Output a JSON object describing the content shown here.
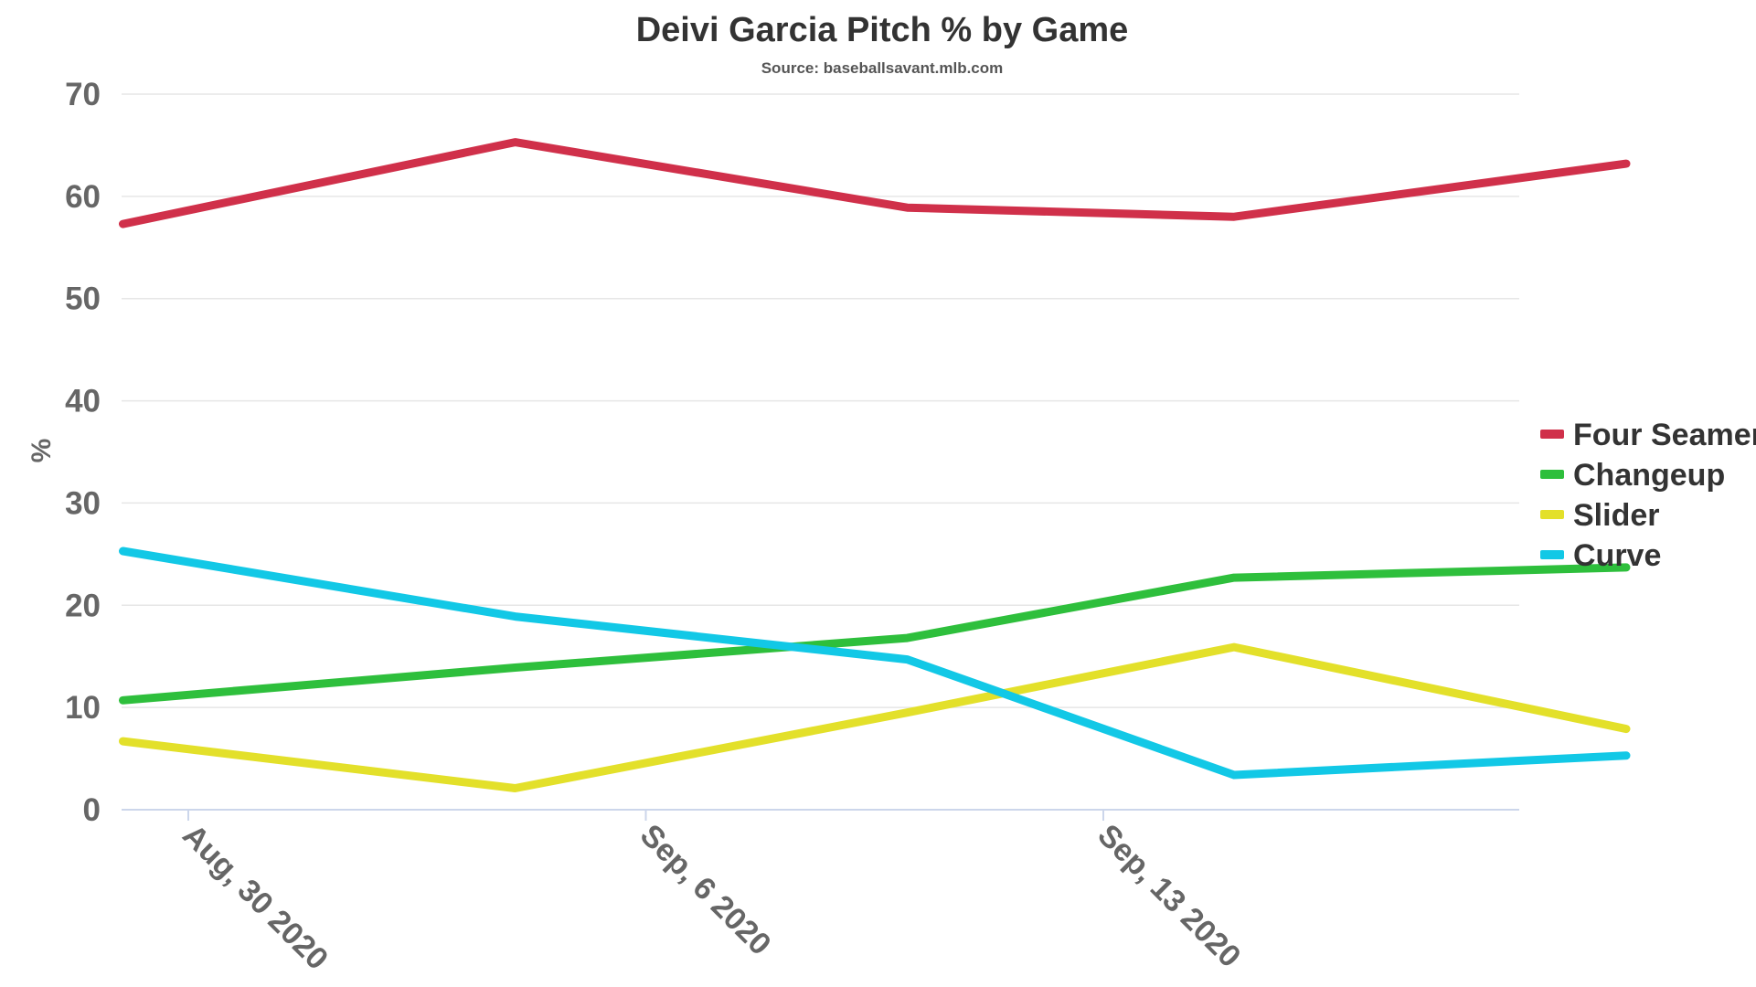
{
  "chart_data": {
    "type": "line",
    "title": "Deivi Garcia Pitch % by Game",
    "subtitle": "Source: baseballsavant.mlb.com",
    "ylabel": "%",
    "xlabel": "",
    "ylim": [
      0,
      70
    ],
    "yticks": [
      0,
      10,
      20,
      30,
      40,
      50,
      60,
      70
    ],
    "x_tick_labels": [
      "Aug, 30 2020",
      "Sep, 6 2020",
      "Sep, 13 2020"
    ],
    "x": [
      "2020-08-29",
      "2020-09-04",
      "2020-09-10",
      "2020-09-15",
      "2020-09-21"
    ],
    "grid": true,
    "legend_position": "right",
    "series": [
      {
        "name": "Four Seamer",
        "color": "#d0304a",
        "values": [
          57.3,
          65.3,
          58.9,
          58.0,
          63.2
        ]
      },
      {
        "name": "Changeup",
        "color": "#2ebf3c",
        "values": [
          10.7,
          13.9,
          16.8,
          22.7,
          23.7
        ]
      },
      {
        "name": "Slider",
        "color": "#e3e02a",
        "values": [
          6.7,
          2.1,
          9.5,
          15.9,
          7.9
        ]
      },
      {
        "name": "Curve",
        "color": "#12c8e6",
        "values": [
          25.3,
          18.9,
          14.7,
          3.4,
          5.3
        ]
      }
    ]
  }
}
